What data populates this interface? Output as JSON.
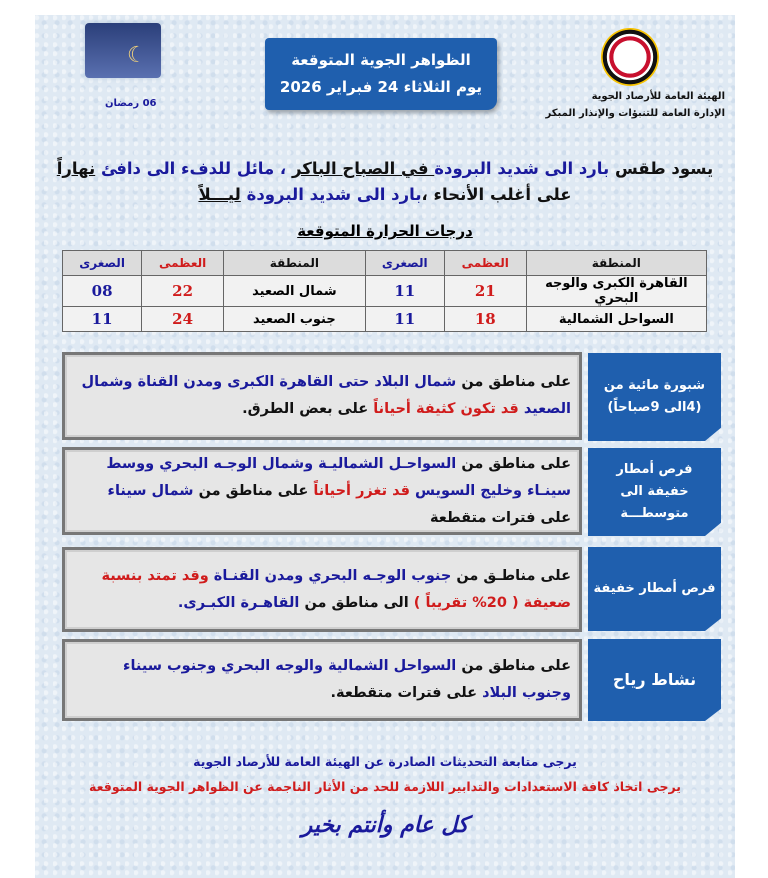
{
  "header": {
    "title_line1": "الظواهر الجوية المتوقعة",
    "title_line2": "يوم الثلاثاء 24 فبراير 2026",
    "org_line1": "الهيئة العامة للأرصاد الجوية",
    "org_line2": "الإدارة العامة للتنبؤات والإنذار المبكر",
    "ramadan_day": "06 رمضان",
    "logo_icon": "egyptian-meteorological-authority-logo",
    "ramadan_icon": "ramadan-lantern-crescent"
  },
  "colors": {
    "blue": "#1a1a9c",
    "red": "#d01c1c",
    "header_blue": "#1f5fae"
  },
  "headline": [
    [
      {
        "t": "يسود طقس ",
        "c": "black"
      },
      {
        "t": "بارد الى شديد البرودة",
        "c": "blue"
      },
      {
        "t": " في الصباح الباكر",
        "c": "black",
        "u": true
      },
      {
        "t": " ، مائل للدفء الى دافئ ",
        "c": "blue"
      },
      {
        "t": "نهاراً",
        "c": "black",
        "u": true
      }
    ],
    [
      {
        "t": "على أغلب الأنحاء ،",
        "c": "black"
      },
      {
        "t": "بارد الى شديد البرودة ",
        "c": "blue"
      },
      {
        "t": "ليـــلاً",
        "c": "black",
        "u": true
      }
    ]
  ],
  "temps": {
    "title": "درجات الحرارة المتوقعة",
    "headers": [
      "المنطقة",
      "العظمى",
      "الصغرى",
      "المنطقة",
      "العظمى",
      "الصغرى"
    ],
    "rows": [
      [
        "القاهرة الكبرى والوجه البحري",
        "21",
        "11",
        "شمال الصعيد",
        "22",
        "08"
      ],
      [
        "السواحل الشمالية",
        "18",
        "11",
        "جنوب الصعيد",
        "24",
        "11"
      ]
    ]
  },
  "phenomena": [
    {
      "label": "شبورة مائية من (4الى 9صباحاً)",
      "text": [
        {
          "t": "على مناطق من ",
          "c": "black"
        },
        {
          "t": "شمال البلاد حتى القاهرة الكبرى ومدن القناة وشمال الصعيد ",
          "c": "blue"
        },
        {
          "t": "قد تكون كثيفة أحياناً",
          "c": "red"
        },
        {
          "t": " على بعض الطرق.",
          "c": "black"
        }
      ]
    },
    {
      "label": "فرص أمطار خفيفة الى متوسطـــة",
      "text": [
        {
          "t": "على مناطق من ",
          "c": "black"
        },
        {
          "t": "السواحـل الشماليـة وشمال الوجـه البحري ووسط سينـاء وخليج السويس ",
          "c": "blue"
        },
        {
          "t": "قد تغزر أحياناً",
          "c": "red"
        },
        {
          "t": " على مناطق من ",
          "c": "black"
        },
        {
          "t": "شمال سيناء",
          "c": "blue"
        },
        {
          "t": " على فترات متقطعة",
          "c": "black"
        }
      ]
    },
    {
      "label": "فرص أمطار خفيفة",
      "text": [
        {
          "t": "على مناطـق من ",
          "c": "black"
        },
        {
          "t": "جنوب الوجـه البحري ومدن القنـاة ",
          "c": "blue"
        },
        {
          "t": "وقد تمتد بنسبة ضعيفة ( 20% تقريباً )",
          "c": "red"
        },
        {
          "t": " الى مناطق من ",
          "c": "black"
        },
        {
          "t": "القاهـرة الكبـرى.",
          "c": "blue"
        }
      ]
    },
    {
      "label": "نشاط رياح",
      "text": [
        {
          "t": "على مناطق من ",
          "c": "black"
        },
        {
          "t": "السواحل الشمالية والوجه البحري وجنوب سيناء وجنوب البلاد ",
          "c": "blue"
        },
        {
          "t": "على فترات متقطعة.",
          "c": "black"
        }
      ]
    }
  ],
  "footer": {
    "line1": "يرجى متابعة التحديثات الصادرة عن الهيئة العامة للأرصاد الجوية",
    "line2": "يرجى اتخاذ كافة الاستعدادات والتدابير اللازمة للحد من الأثار الناجمة عن الظواهر الجوية المتوقعة",
    "greeting": "كل عام وأنتم بخير"
  }
}
